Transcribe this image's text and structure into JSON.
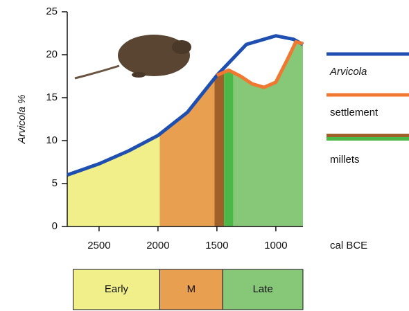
{
  "chart_data": {
    "type": "line",
    "ylabel": "Arvicola %",
    "xlabel": "cal BCE",
    "xlim": [
      2770,
      770
    ],
    "ylim": [
      0,
      25
    ],
    "xticks": [
      2500,
      2000,
      1500,
      1000
    ],
    "yticks": [
      0,
      5,
      10,
      15,
      20,
      25
    ],
    "series": [
      {
        "name": "Arvicola",
        "color": "#1f4fb0",
        "x": [
          2770,
          2500,
          2250,
          2000,
          1750,
          1500,
          1250,
          1000,
          850,
          770
        ],
        "values": [
          6,
          7.3,
          8.8,
          10.6,
          13.3,
          17.6,
          21.2,
          22.2,
          21.8,
          21.2
        ]
      },
      {
        "name": "settlement",
        "color": "#f07830",
        "x": [
          1500,
          1400,
          1300,
          1200,
          1100,
          1000,
          900,
          830,
          770
        ],
        "values": [
          17.6,
          18.2,
          17.5,
          16.6,
          16.2,
          16.8,
          19.5,
          21.5,
          21.3
        ]
      }
    ],
    "millets": {
      "name": "millets",
      "colors": [
        "#a0602a",
        "#4cb848"
      ]
    },
    "shading": [
      {
        "from": 2770,
        "to": 1985,
        "color": "#f0ef8a"
      },
      {
        "from": 1985,
        "to": 1520,
        "color": "#e8a050"
      },
      {
        "from": 1520,
        "to": 1440,
        "color": "#a0602a"
      },
      {
        "from": 1440,
        "to": 1360,
        "color": "#4cb848"
      },
      {
        "from": 1360,
        "to": 770,
        "color": "#86c878"
      }
    ],
    "periods": [
      {
        "name": "Early",
        "from": 2720,
        "to": 1985,
        "color": "#f0ef8a"
      },
      {
        "name": "M",
        "from": 1985,
        "to": 1450,
        "color": "#e8a050"
      },
      {
        "name": "Late",
        "from": 1450,
        "to": 770,
        "color": "#86c878"
      }
    ]
  }
}
